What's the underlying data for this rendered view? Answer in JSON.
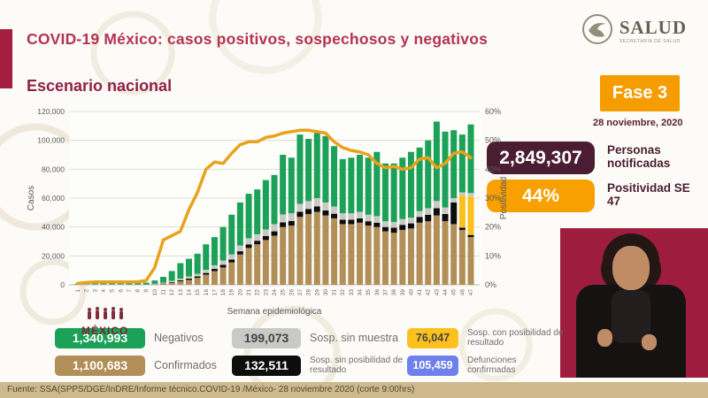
{
  "header": {
    "title": "COVID-19 México: casos positivos, sospechosos y negativos",
    "logo": {
      "name": "SALUD",
      "sub": "SECRETARÍA DE SALUD"
    }
  },
  "section_title": "Escenario nacional",
  "status": {
    "fase_label": "Fase 3",
    "date": "28 noviembre, 2020",
    "notified": {
      "value": "2,849,307",
      "label": "Personas notificadas"
    },
    "positivity": {
      "value": "44%",
      "label": "Positividad SE 47"
    }
  },
  "chart_data": {
    "type": "bar",
    "stacked": true,
    "title": "Escenario nacional",
    "x": [
      1,
      2,
      3,
      4,
      5,
      6,
      7,
      8,
      9,
      10,
      11,
      12,
      13,
      14,
      15,
      16,
      17,
      18,
      19,
      20,
      21,
      22,
      23,
      24,
      25,
      26,
      27,
      28,
      29,
      30,
      31,
      32,
      33,
      34,
      35,
      36,
      37,
      38,
      39,
      40,
      41,
      42,
      43,
      44,
      45,
      46,
      47
    ],
    "xlabel": "Semana epidemiológica",
    "ylabel_left": "Casos",
    "ylabel_right": "Positividad",
    "ylim_left": [
      0,
      120000
    ],
    "ylim_right": [
      0,
      60
    ],
    "grid": "horizontal",
    "series": [
      {
        "name": "Confirmados",
        "color": "#B28E58",
        "values": [
          100,
          100,
          100,
          100,
          100,
          100,
          100,
          100,
          100,
          300,
          800,
          1500,
          2400,
          3400,
          4800,
          7000,
          9500,
          12000,
          15500,
          21000,
          25500,
          28000,
          31000,
          34000,
          40000,
          41000,
          47000,
          49000,
          50500,
          48000,
          46000,
          42000,
          42000,
          43000,
          41000,
          40000,
          37000,
          36000,
          38000,
          39000,
          43000,
          44000,
          48000,
          44000,
          42000,
          38000,
          33000
        ]
      },
      {
        "name": "Sosp. sin posibilidad de resultado",
        "color": "#0D0D0D",
        "values": [
          0,
          0,
          0,
          0,
          0,
          0,
          0,
          0,
          0,
          100,
          200,
          400,
          700,
          900,
          1000,
          1200,
          1500,
          1800,
          2000,
          2200,
          2500,
          2500,
          2800,
          3000,
          3200,
          3200,
          3500,
          3500,
          3800,
          3500,
          3200,
          3000,
          3000,
          3000,
          3000,
          3000,
          3000,
          3500,
          3500,
          3500,
          4000,
          4500,
          5000,
          5000,
          15000,
          1500,
          1500
        ]
      },
      {
        "name": "Sosp. con posibilidad de resultado",
        "color": "#FCC11E",
        "values": [
          0,
          0,
          0,
          0,
          0,
          0,
          0,
          0,
          0,
          0,
          0,
          0,
          0,
          0,
          0,
          0,
          0,
          0,
          0,
          0,
          0,
          0,
          0,
          0,
          0,
          0,
          0,
          0,
          0,
          0,
          0,
          0,
          0,
          0,
          0,
          0,
          0,
          0,
          0,
          0,
          0,
          0,
          0,
          0,
          0,
          22500,
          26500
        ]
      },
      {
        "name": "Sosp. sin muestra",
        "color": "#C9C9C5",
        "values": [
          100,
          200,
          200,
          200,
          200,
          200,
          100,
          100,
          100,
          300,
          500,
          800,
          1200,
          1500,
          1800,
          2200,
          2500,
          3000,
          3500,
          4000,
          4200,
          4500,
          4500,
          5000,
          5500,
          5300,
          5500,
          5500,
          5700,
          5500,
          5000,
          4500,
          4500,
          4500,
          4500,
          4500,
          4000,
          4000,
          4000,
          4000,
          4000,
          4500,
          5000,
          4500,
          3000,
          2000,
          2500
        ]
      },
      {
        "name": "Negativos",
        "color": "#1BA158",
        "values": [
          600,
          1200,
          1500,
          1700,
          1700,
          1500,
          1400,
          1300,
          1300,
          2300,
          4000,
          6800,
          10700,
          12200,
          13900,
          17600,
          19500,
          23200,
          27500,
          29800,
          30800,
          31000,
          34200,
          34000,
          41300,
          38500,
          48000,
          43000,
          45000,
          46000,
          41800,
          37500,
          38500,
          39500,
          39500,
          44500,
          40000,
          40500,
          42500,
          45500,
          44000,
          47000,
          55000,
          52500,
          47000,
          40000,
          47500
        ]
      }
    ],
    "line": {
      "name": "Positividad",
      "axis": "right",
      "color": "#E8A21C",
      "values": [
        0.5,
        0.8,
        1,
        1,
        1,
        1,
        1,
        1,
        1.5,
        6,
        15.5,
        17,
        18.5,
        26,
        32,
        40,
        42.5,
        42,
        45.5,
        48.5,
        49.5,
        49.5,
        51,
        51.5,
        52.5,
        53,
        53.5,
        53.5,
        53,
        52.5,
        49.5,
        47.5,
        46.5,
        46,
        45,
        42,
        40.5,
        41,
        40,
        40.5,
        43.5,
        44,
        40.5,
        42,
        45.5,
        46,
        44
      ]
    }
  },
  "legend": {
    "items": [
      {
        "value": "1,340,993",
        "label": "Negativos",
        "color": "#1BA158"
      },
      {
        "value": "199,073",
        "label": "Sosp. sin muestra",
        "color": "#C9C9C5"
      },
      {
        "value": "76,047",
        "label": "Sosp. con posibilidad de resultado",
        "color": "#FCC11E"
      },
      {
        "value": "1,100,683",
        "label": "Confirmados",
        "color": "#B28E58"
      },
      {
        "value": "132,511",
        "label": "Sosp. sin posibilidad de resultado",
        "color": "#0D0D0D"
      },
      {
        "value": "105,459",
        "label": "Defunciones confirmadas",
        "color": "#6F80ED"
      }
    ]
  },
  "watermark": "MÉXICO",
  "footer": "Fuente: SSA(SPPS/DGE/InDRE/Informe técnico.COVID-19 /México- 28 noviembre 2020 (corte 9:00hrs)"
}
